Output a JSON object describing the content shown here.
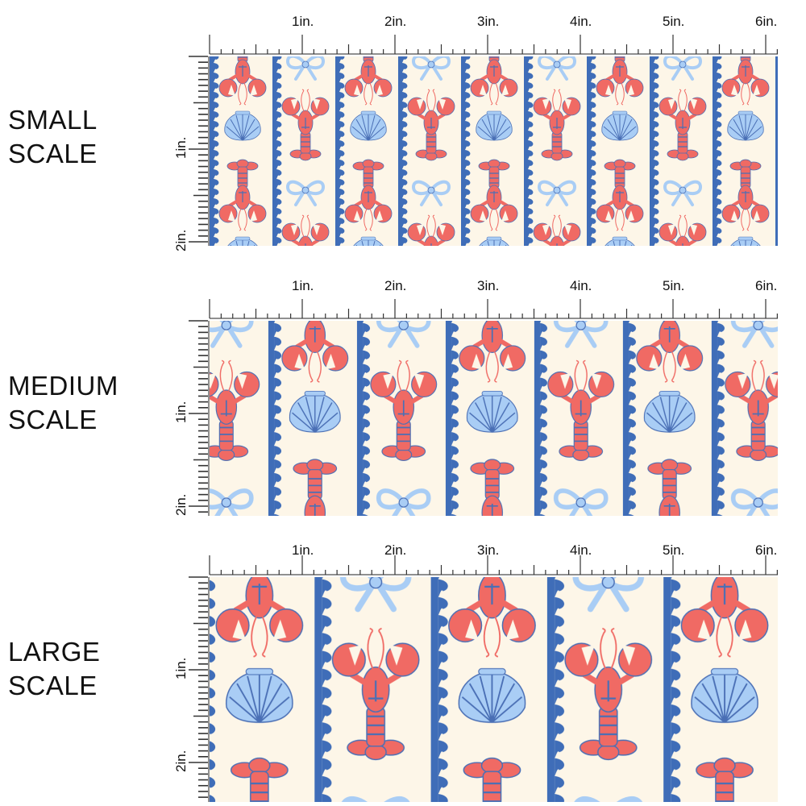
{
  "colors": {
    "background": "#fdf6e8",
    "stripe_blue": "#3f6db8",
    "light_blue": "#a9cdf5",
    "coral": "#f06a64",
    "outline_blue": "#4a6fb5"
  },
  "motifs": [
    "lobster",
    "bow",
    "scallop-shell",
    "wave-stripe"
  ],
  "scales": [
    {
      "id": "small",
      "line1": "SMALL",
      "line2": "SCALE",
      "top_ruler_labels": [
        "1in.",
        "2in.",
        "3in.",
        "4in.",
        "5in.",
        "6in."
      ],
      "side_ruler_labels": [
        "1in.",
        "2in."
      ]
    },
    {
      "id": "medium",
      "line1": "MEDIUM",
      "line2": "SCALE",
      "top_ruler_labels": [
        "1in.",
        "2in.",
        "3in.",
        "4in.",
        "5in.",
        "6in."
      ],
      "side_ruler_labels": [
        "1in.",
        "2in."
      ]
    },
    {
      "id": "large",
      "line1": "LARGE",
      "line2": "SCALE",
      "top_ruler_labels": [
        "1in.",
        "2in.",
        "3in.",
        "4in.",
        "5in.",
        "6in."
      ],
      "side_ruler_labels": [
        "1in.",
        "2in."
      ]
    }
  ]
}
